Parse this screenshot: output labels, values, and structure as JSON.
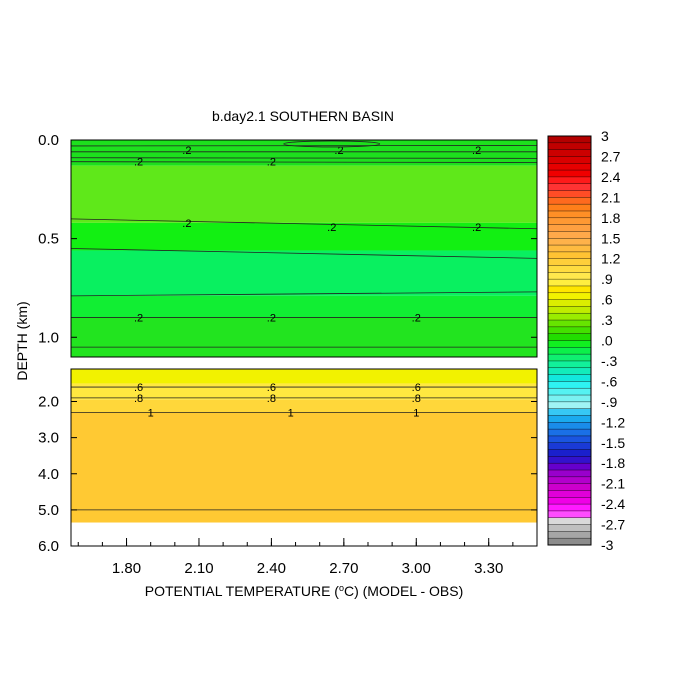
{
  "chart_data": {
    "type": "heatmap",
    "title": "b.day2.1 SOUTHERN BASIN",
    "ylabel": "DEPTH (km)",
    "xlabel_parts": {
      "pre": "POTENTIAL TEMPERATURE (",
      "sup": "o",
      "post": "C) (MODEL - OBS)"
    },
    "x_ticks": [
      "1.80",
      "2.10",
      "2.40",
      "2.70",
      "3.00",
      "3.30"
    ],
    "x_tick_values": [
      1.8,
      2.1,
      2.4,
      2.7,
      3.0,
      3.3
    ],
    "xlim": [
      1.57,
      3.5
    ],
    "upper_panel": {
      "ylim": [
        0.0,
        1.1
      ],
      "y_ticks": [
        "0.0",
        "0.5",
        "1.0"
      ],
      "y_tick_values": [
        0.0,
        0.5,
        1.0
      ],
      "bands": [
        {
          "from": 0.0,
          "to": 0.13,
          "color": "#1de01d"
        },
        {
          "from": 0.13,
          "to": 0.42,
          "color": "#5fe81a"
        },
        {
          "from": 0.42,
          "to": 0.56,
          "color": "#12f012"
        },
        {
          "from": 0.56,
          "to": 0.79,
          "color": "#09f060"
        },
        {
          "from": 0.79,
          "to": 0.9,
          "color": "#11ee33"
        },
        {
          "from": 0.9,
          "to": 1.1,
          "color": "#22e41f"
        }
      ],
      "contours": [
        {
          "depth": 0.03,
          "tilt": -0.002
        },
        {
          "depth": 0.06,
          "tilt": 0.0
        },
        {
          "depth": 0.09,
          "tilt": 0.003
        },
        {
          "depth": 0.11,
          "tilt": 0.004
        },
        {
          "depth": 0.4,
          "tilt": 0.05
        },
        {
          "depth": 0.55,
          "tilt": 0.05
        },
        {
          "depth": 0.79,
          "tilt": -0.02
        },
        {
          "depth": 0.9,
          "tilt": 0.0
        },
        {
          "depth": 1.05,
          "tilt": 0.0
        }
      ],
      "labels": [
        {
          "x": 2.05,
          "depth": 0.05,
          "text": ".2"
        },
        {
          "x": 2.68,
          "depth": 0.05,
          "text": ".2"
        },
        {
          "x": 3.25,
          "depth": 0.05,
          "text": ".2"
        },
        {
          "x": 1.85,
          "depth": 0.11,
          "text": ".2"
        },
        {
          "x": 2.4,
          "depth": 0.11,
          "text": ".2"
        },
        {
          "x": 2.05,
          "depth": 0.42,
          "text": ".2"
        },
        {
          "x": 2.65,
          "depth": 0.44,
          "text": ".2"
        },
        {
          "x": 3.25,
          "depth": 0.44,
          "text": ".2"
        },
        {
          "x": 1.85,
          "depth": 0.9,
          "text": ".2"
        },
        {
          "x": 2.4,
          "depth": 0.9,
          "text": ".2"
        },
        {
          "x": 3.0,
          "depth": 0.9,
          "text": ".2"
        }
      ]
    },
    "lower_panel": {
      "ylim": [
        1.1,
        6.0
      ],
      "y_ticks": [
        "2.0",
        "3.0",
        "4.0",
        "5.0",
        "6.0"
      ],
      "y_tick_values": [
        2.0,
        3.0,
        4.0,
        5.0,
        6.0
      ],
      "data_bottom_depth": 5.35,
      "bands": [
        {
          "from": 1.1,
          "to": 1.5,
          "color": "#f2f200"
        },
        {
          "from": 1.5,
          "to": 1.95,
          "color": "#ffe840"
        },
        {
          "from": 1.95,
          "to": 2.3,
          "color": "#ffd73a"
        },
        {
          "from": 2.3,
          "to": 5.35,
          "color": "#ffc933"
        }
      ],
      "contours": [
        {
          "depth": 1.6,
          "tilt": 0.0
        },
        {
          "depth": 1.9,
          "tilt": 0.0
        },
        {
          "depth": 2.3,
          "tilt": 0.0
        },
        {
          "depth": 5.0,
          "tilt": 0.0
        }
      ],
      "labels": [
        {
          "x": 1.85,
          "depth": 1.6,
          "text": ".6"
        },
        {
          "x": 2.4,
          "depth": 1.6,
          "text": ".6"
        },
        {
          "x": 3.0,
          "depth": 1.6,
          "text": ".6"
        },
        {
          "x": 1.85,
          "depth": 1.9,
          "text": ".8"
        },
        {
          "x": 2.4,
          "depth": 1.9,
          "text": ".8"
        },
        {
          "x": 3.0,
          "depth": 1.9,
          "text": ".8"
        },
        {
          "x": 1.9,
          "depth": 2.3,
          "text": "1"
        },
        {
          "x": 2.48,
          "depth": 2.3,
          "text": "1"
        },
        {
          "x": 3.0,
          "depth": 2.3,
          "text": "1"
        }
      ]
    },
    "colorbar": {
      "levels_top_to_bottom": [
        "3",
        "2.7",
        "2.4",
        "2.1",
        "1.8",
        "1.5",
        "1.2",
        ".9",
        ".6",
        ".3",
        ".0",
        "-.3",
        "-.6",
        "-.9",
        "-1.2",
        "-1.5",
        "-1.8",
        "-2.1",
        "-2.4",
        "-2.7",
        "-3"
      ],
      "colors_top_to_bottom": [
        "#b30000",
        "#c00000",
        "#cc0000",
        "#d90000",
        "#e60000",
        "#f00000",
        "#ff1a1a",
        "#ff3333",
        "#ff4d26",
        "#ff6a1e",
        "#ff7f1a",
        "#ff8f26",
        "#ff9933",
        "#ffa040",
        "#ffa94a",
        "#ffb24a",
        "#ffbb40",
        "#ffc233",
        "#ffcf3a",
        "#ffdc40",
        "#ffe84d",
        "#ffee40",
        "#ffe600",
        "#f2f200",
        "#dbee00",
        "#c0ec00",
        "#9aec00",
        "#66e400",
        "#44e000",
        "#22dd00",
        "#11f020",
        "#0bf04a",
        "#0ff070",
        "#12f09a",
        "#12ecbb",
        "#12e8dd",
        "#2ef2f2",
        "#55f2f2",
        "#7af2f2",
        "#a0f4f4",
        "#36c8f4",
        "#1aaaee",
        "#1a8cea",
        "#1a70e6",
        "#1a55e0",
        "#1a3ad6",
        "#1a20cc",
        "#3312cc",
        "#6600cc",
        "#9900cc",
        "#b300cc",
        "#cc00cc",
        "#e000d9",
        "#f000e6",
        "#ff1aff",
        "#ff4dff",
        "#d9d9d9",
        "#bfbfbf",
        "#a6a6a6",
        "#8c8c8c"
      ]
    }
  }
}
